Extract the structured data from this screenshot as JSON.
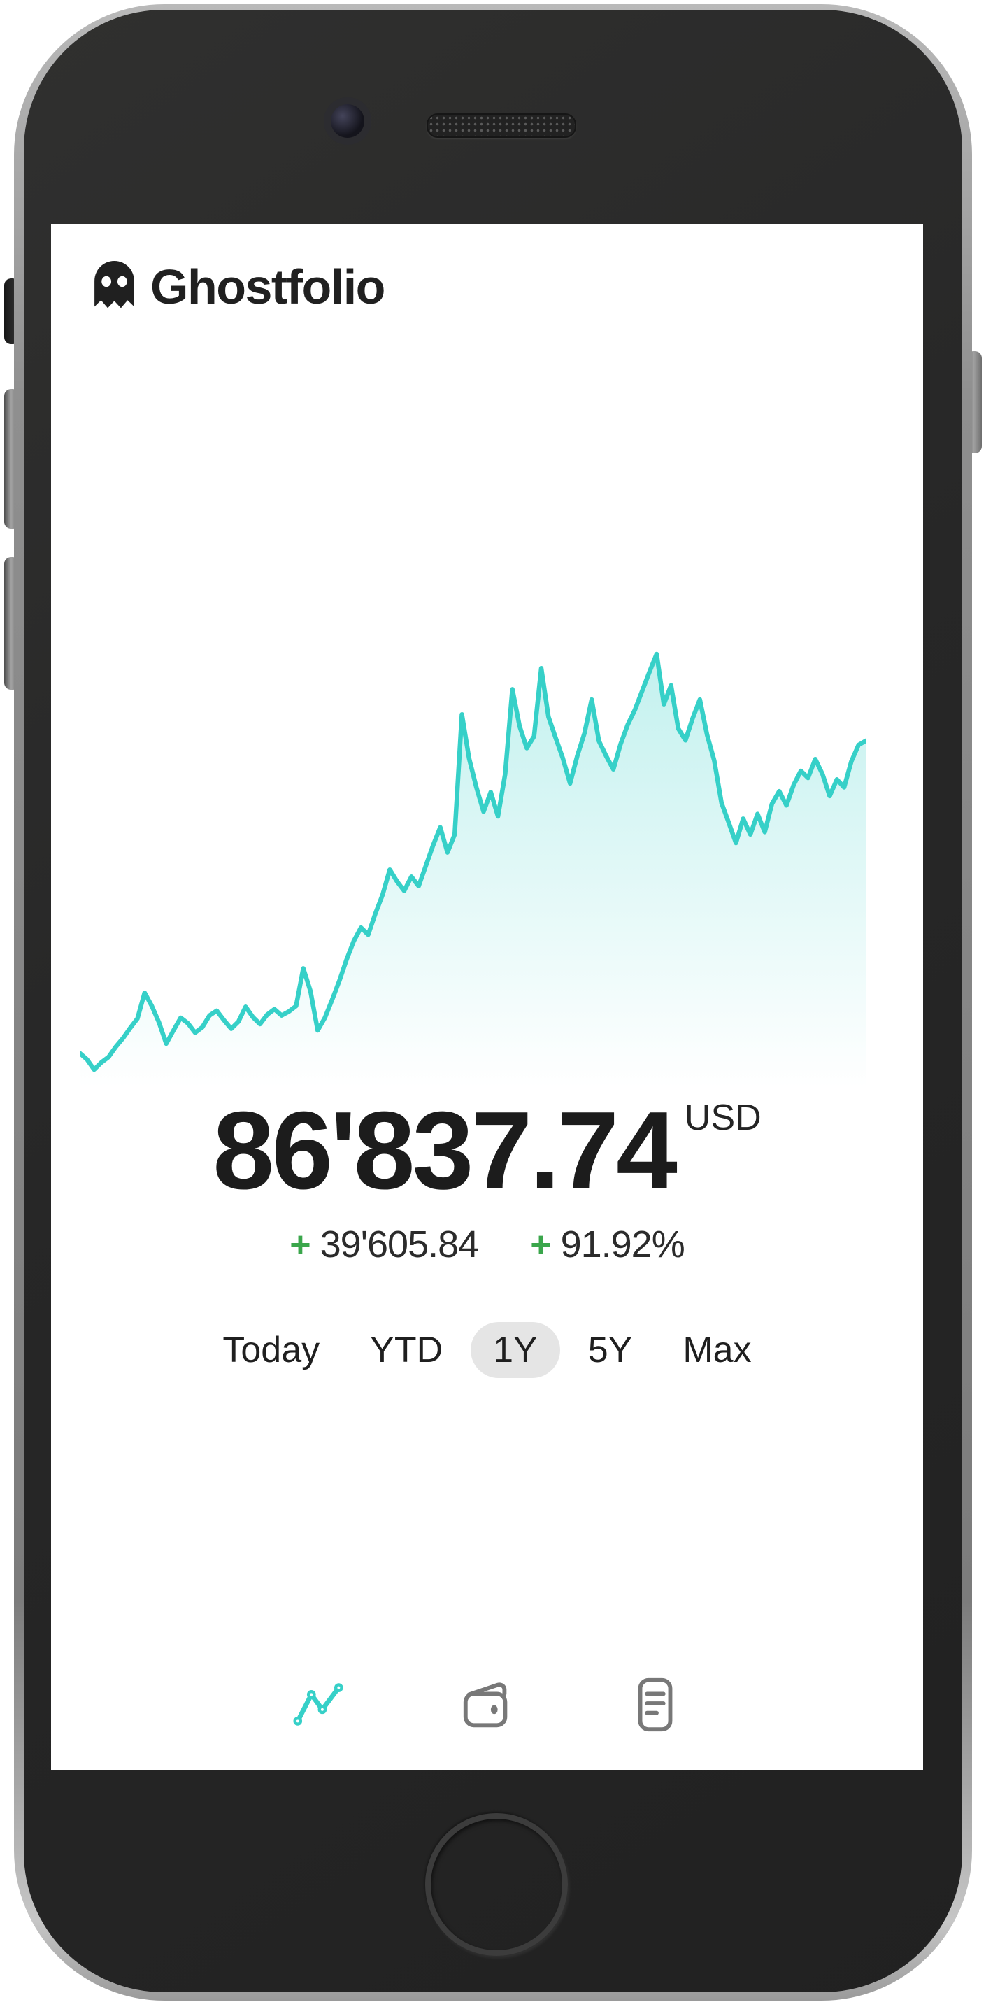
{
  "app": {
    "brand": "Ghostfolio"
  },
  "header": {
    "logo_icon": "ghost-icon",
    "menu_icon": "hamburger-menu-icon"
  },
  "portfolio": {
    "value": "86'837.74",
    "currency": "USD",
    "change_sign": "+",
    "change_absolute": "39'605.84",
    "change_percent": "91.92%"
  },
  "period_selector": {
    "options": [
      {
        "label": "Today",
        "selected": false
      },
      {
        "label": "YTD",
        "selected": false
      },
      {
        "label": "1Y",
        "selected": true
      },
      {
        "label": "5Y",
        "selected": false
      },
      {
        "label": "Max",
        "selected": false
      }
    ]
  },
  "bottom_nav": [
    {
      "name": "overview",
      "icon": "line-chart-icon",
      "active": true
    },
    {
      "name": "wallet",
      "icon": "wallet-icon",
      "active": false
    },
    {
      "name": "report",
      "icon": "report-icon",
      "active": false
    }
  ],
  "colors": {
    "accent_teal": "#36d0c8",
    "positive_green": "#3aa64b",
    "pill_bg": "#e5e5e5",
    "icon_gray": "#787878",
    "text_dark": "#1c1c1c"
  },
  "chart_data": {
    "type": "area",
    "x": "time over selected period 1Y (axis hidden, unlabeled)",
    "ylabel": "portfolio value in USD (axis hidden)",
    "grid": false,
    "legend": false,
    "axes_hidden": true,
    "y_min_estimate": 44900,
    "y_max_estimate": 97900,
    "end_value": 86837.74,
    "series": [
      {
        "name": "portfolio-value-usd",
        "values": [
          47000,
          46200,
          44900,
          45800,
          46500,
          47800,
          48900,
          50200,
          51400,
          54700,
          53000,
          50900,
          48200,
          49900,
          51500,
          50800,
          49600,
          50300,
          51800,
          52400,
          51200,
          50100,
          51000,
          52900,
          51600,
          50700,
          51900,
          52600,
          51800,
          52300,
          53000,
          57800,
          54900,
          49900,
          51500,
          53800,
          56200,
          58900,
          61300,
          63000,
          62100,
          64800,
          67200,
          70400,
          68900,
          67700,
          69500,
          68300,
          70900,
          73500,
          75800,
          72600,
          74900,
          90200,
          84600,
          80900,
          77800,
          80300,
          77200,
          82600,
          93400,
          88700,
          85900,
          87400,
          96100,
          89900,
          87200,
          84600,
          81400,
          84900,
          87800,
          92100,
          86800,
          84900,
          83200,
          86400,
          88900,
          90800,
          93200,
          95600,
          97900,
          91500,
          93900,
          88400,
          86900,
          89700,
          92100,
          87600,
          84300,
          78900,
          76400,
          73800,
          76900,
          74900,
          77500,
          75200,
          78800,
          80400,
          78600,
          81200,
          83000,
          82100,
          84500,
          82600,
          79800,
          81900,
          80900,
          84200,
          86300,
          86837.74
        ]
      }
    ]
  }
}
